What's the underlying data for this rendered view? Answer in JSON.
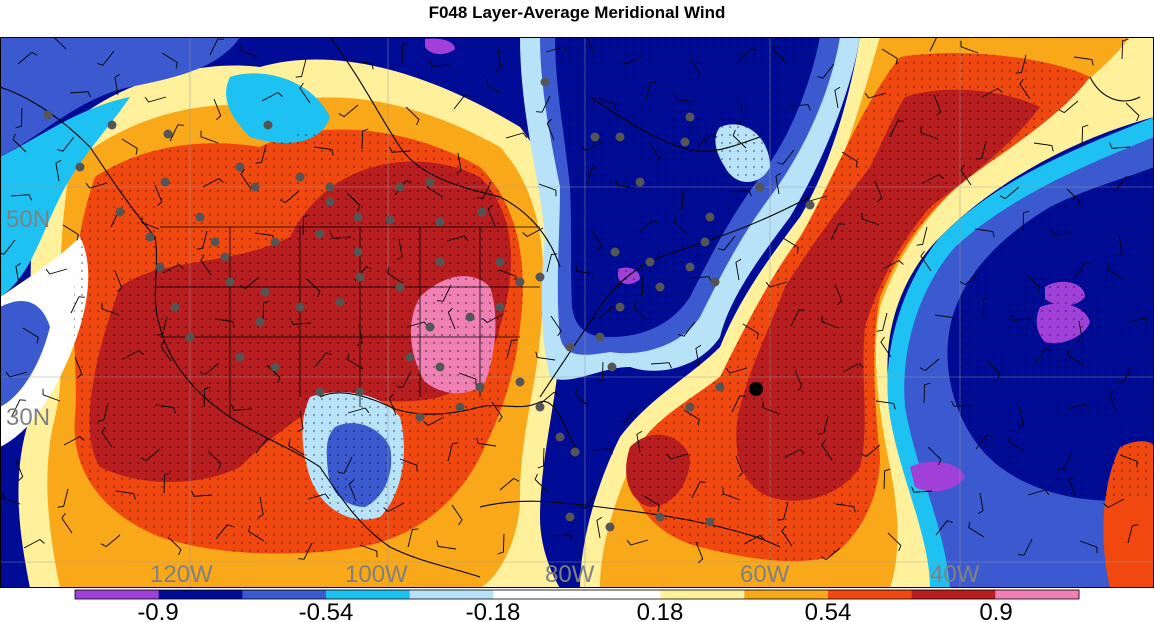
{
  "title": "F048 Layer-Average Meridional Wind",
  "lat_labels": [
    "50N",
    "30N"
  ],
  "lon_labels": [
    "120W",
    "100W",
    "80W",
    "60W",
    "40W"
  ],
  "colorbar": {
    "tick_labels": [
      "-0.9",
      "-0.54",
      "-0.18",
      "0.18",
      "0.54",
      "0.9"
    ],
    "colors": [
      "#a040d8",
      "#000c96",
      "#3c5ad0",
      "#1ec2f2",
      "#b8e2f8",
      "#ffffff",
      "#ffffff",
      "#fff09c",
      "#f9a81a",
      "#f0480e",
      "#b81e20",
      "#f080b4"
    ]
  },
  "field_colors": {
    "strong_south": "#000c96",
    "south": "#3c5ad0",
    "light_south": "#1ec2f2",
    "weak_south": "#b8e2f8",
    "neutral": "#ffffff",
    "weak_north": "#fff09c",
    "north": "#f9a81a",
    "strong_north": "#f0480e",
    "very_strong_north": "#b81e20",
    "extreme_north": "#f080b4",
    "extreme_south": "#a040d8"
  },
  "marker_colors": {
    "station": "#555555",
    "highlight": "#000000"
  }
}
